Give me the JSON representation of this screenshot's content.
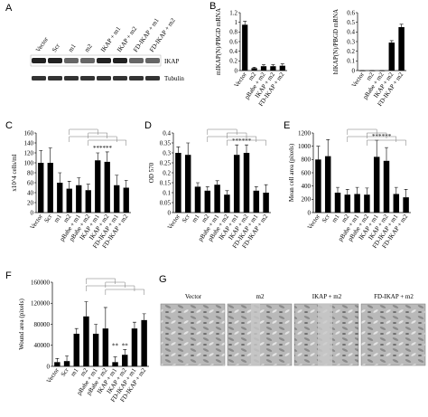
{
  "panels": {
    "A": "A",
    "G": "G"
  },
  "blot": {
    "lanes": [
      "Vector",
      "Scr",
      "m1",
      "m2",
      "IKAP + m1",
      "IKAP + m2",
      "FD-IKAP + m1",
      "FD-IKAP + m2"
    ],
    "bands": [
      "IKAP",
      "Tubulin"
    ]
  },
  "images": {
    "labels": [
      "Vector",
      "m2",
      "IKAP + m2",
      "FD-IKAP + m2"
    ]
  },
  "chart_data": [
    {
      "type": "bar",
      "panel": "B",
      "ylabel": "mIKAP(N)/PBGD mRNA",
      "categories": [
        "Vector",
        "m2",
        "pBabe + m2",
        "IKAP + m2",
        "FD-IKAP + m2"
      ],
      "values": [
        0.95,
        0.05,
        0.09,
        0.09,
        0.1
      ],
      "errors": [
        0.07,
        0.02,
        0.03,
        0.03,
        0.04
      ],
      "ylim": [
        0,
        1.2
      ],
      "yticks": [
        0,
        0.2,
        0.4,
        0.6,
        0.8,
        1,
        1.2
      ],
      "color": "#000000"
    },
    {
      "type": "bar",
      "ylabel": "hIKAP(N)/PBGD mRNA",
      "categories": [
        "Vector",
        "m2",
        "pBabe + m2",
        "IKAP + m2",
        "FD-IKAP + m2"
      ],
      "values": [
        0,
        0,
        0,
        0.29,
        0.45
      ],
      "errors": [
        0,
        0,
        0,
        0.02,
        0.03
      ],
      "ylim": [
        0,
        0.6
      ],
      "yticks": [
        0,
        0.1,
        0.2,
        0.3,
        0.4,
        0.5,
        0.6
      ],
      "color": "#000000"
    },
    {
      "type": "bar",
      "panel": "C",
      "ylabel": "x10^4 cells/ml",
      "categories": [
        "Vector",
        "Scr",
        "m1",
        "m2",
        "pBabe + m1",
        "pBabe + m2",
        "IKAP + m1",
        "IKAP + m2",
        "FD-IKAP + m1",
        "FD-IKAP + m2"
      ],
      "values": [
        100,
        100,
        60,
        48,
        55,
        45,
        105,
        102,
        55,
        50
      ],
      "errors": [
        25,
        30,
        20,
        15,
        15,
        12,
        15,
        20,
        20,
        15
      ],
      "ylim": [
        0,
        160
      ],
      "yticks": [
        0,
        20,
        40,
        60,
        80,
        100,
        120,
        140,
        160
      ],
      "annotations": [
        "***",
        "***"
      ],
      "color": "#000000"
    },
    {
      "type": "bar",
      "panel": "D",
      "ylabel": "OD 570",
      "categories": [
        "Vector",
        "Scr",
        "m1",
        "m2",
        "pBabe + m1",
        "pBabe + m2",
        "IKAP + m1",
        "IKAP + m2",
        "FD-IKAP + m1",
        "FD-IKAP + m2"
      ],
      "values": [
        0.3,
        0.29,
        0.13,
        0.11,
        0.14,
        0.09,
        0.29,
        0.3,
        0.11,
        0.1
      ],
      "errors": [
        0.03,
        0.06,
        0.02,
        0.02,
        0.02,
        0.02,
        0.05,
        0.04,
        0.02,
        0.04
      ],
      "ylim": [
        0,
        0.4
      ],
      "yticks": [
        0,
        0.05,
        0.1,
        0.15,
        0.2,
        0.25,
        0.3,
        0.35,
        0.4
      ],
      "annotations": [
        "***",
        "***"
      ],
      "color": "#000000"
    },
    {
      "type": "bar",
      "panel": "E",
      "ylabel": "Mean cell area (pixels)",
      "categories": [
        "Vector",
        "Scr",
        "m1",
        "m2",
        "pBabe + m1",
        "pBabe + m2",
        "IKAP + m1",
        "IKAP + m2",
        "FD-IKAP + m1",
        "FD-IKAP + m2"
      ],
      "values": [
        800,
        850,
        300,
        270,
        280,
        270,
        840,
        780,
        280,
        230
      ],
      "errors": [
        200,
        250,
        80,
        80,
        100,
        100,
        250,
        200,
        100,
        120
      ],
      "ylim": [
        0,
        1200
      ],
      "yticks": [
        0,
        200,
        400,
        600,
        800,
        1000,
        1200
      ],
      "annotations": [
        "***",
        "***"
      ],
      "color": "#000000"
    },
    {
      "type": "bar",
      "panel": "F",
      "ylabel": "Wound area (pixels)",
      "categories": [
        "Vector",
        "Scr",
        "m1",
        "m2",
        "pBabe + m1",
        "pBabe + m2",
        "IKAP + m1",
        "IKAP + m2",
        "FD-IKAP + m1",
        "FD-IKAP + m2"
      ],
      "values": [
        8000,
        10000,
        62000,
        95000,
        62000,
        72000,
        8000,
        22000,
        72000,
        88000
      ],
      "errors": [
        7000,
        10000,
        10000,
        28000,
        18000,
        40000,
        10000,
        10000,
        12000,
        12000
      ],
      "ylim": [
        0,
        160000
      ],
      "yticks": [
        0,
        40000,
        80000,
        120000,
        160000
      ],
      "annotations": [
        "**",
        "**"
      ],
      "color": "#000000"
    }
  ]
}
